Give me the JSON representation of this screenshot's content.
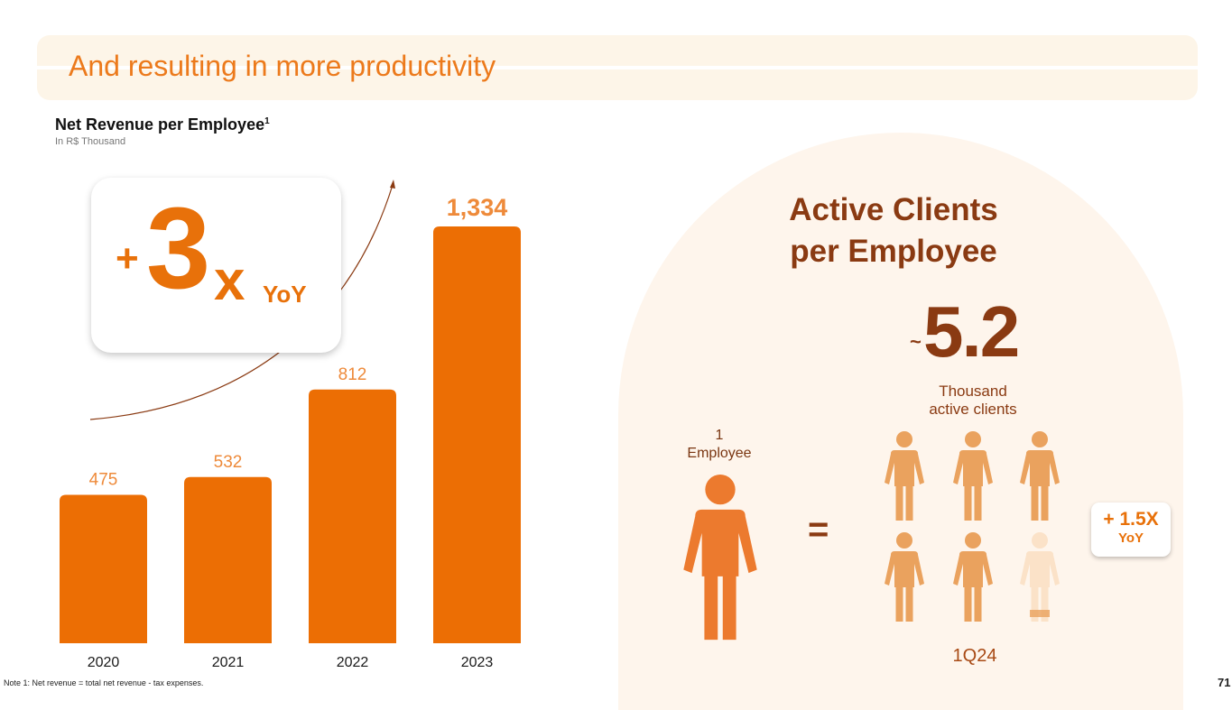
{
  "header": {
    "title": "And resulting in more productivity"
  },
  "chart_data": {
    "type": "bar",
    "title": "Net Revenue per Employee",
    "title_sup": "1",
    "subtitle": "In R$ Thousand",
    "categories": [
      "2020",
      "2021",
      "2022",
      "2023"
    ],
    "values": [
      475,
      532,
      812,
      1334
    ],
    "data_labels": [
      "475",
      "532",
      "812",
      "1,334"
    ],
    "ylim": [
      0,
      1334
    ],
    "grid": false,
    "bar_color": "#ec6e04",
    "label_color": "#ee8a3a",
    "annotation": {
      "plus": "+",
      "number": "3",
      "x": "x",
      "yoy": "YoY"
    }
  },
  "clients": {
    "title_line1": "Active Clients",
    "title_line2": "per Employee",
    "approx": "~",
    "value": "5.2",
    "unit_line1": "Thousand",
    "unit_line2": "active clients",
    "employee_count": "1",
    "employee_label": "Employee",
    "equals": "=",
    "people_full": 5,
    "people_partial": 0.2,
    "period": "1Q24",
    "badge_value": "+ 1.5X",
    "badge_unit": "YoY",
    "colors": {
      "accent": "#8a3a12",
      "employee": "#ec7a2e",
      "client": "#eaa25e",
      "partial": "#fbe2c8"
    }
  },
  "footer": {
    "note": "Note 1: Net revenue = total net revenue - tax expenses.",
    "page": "71"
  }
}
